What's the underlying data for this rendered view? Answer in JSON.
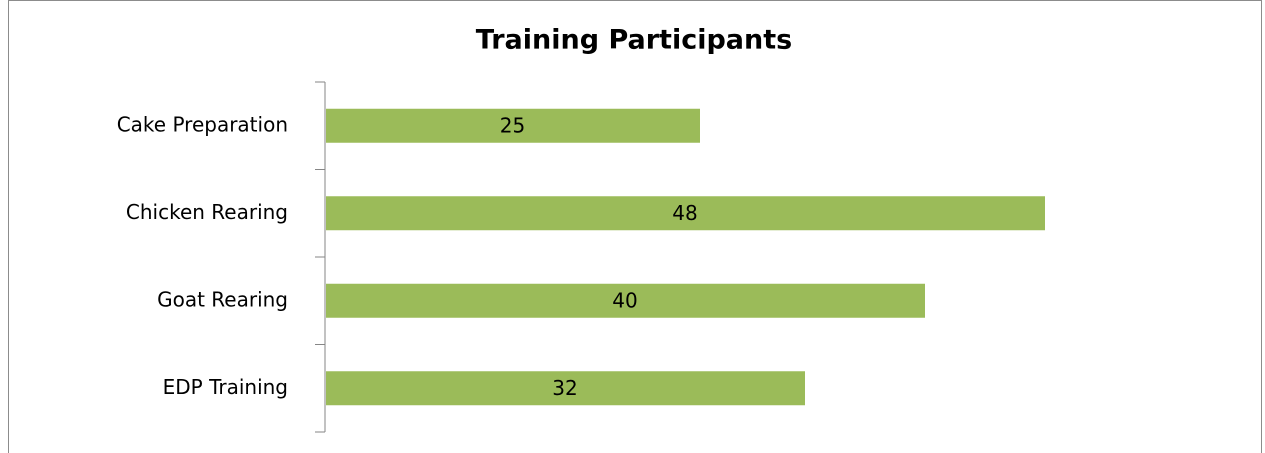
{
  "chart_data": {
    "type": "bar",
    "orientation": "horizontal",
    "title": "Training Participants",
    "categories": [
      "Cake Preparation",
      "Chicken Rearing",
      "Goat Rearing",
      "EDP Training"
    ],
    "values": [
      25,
      48,
      40,
      32
    ],
    "color": "#9bbb59"
  }
}
